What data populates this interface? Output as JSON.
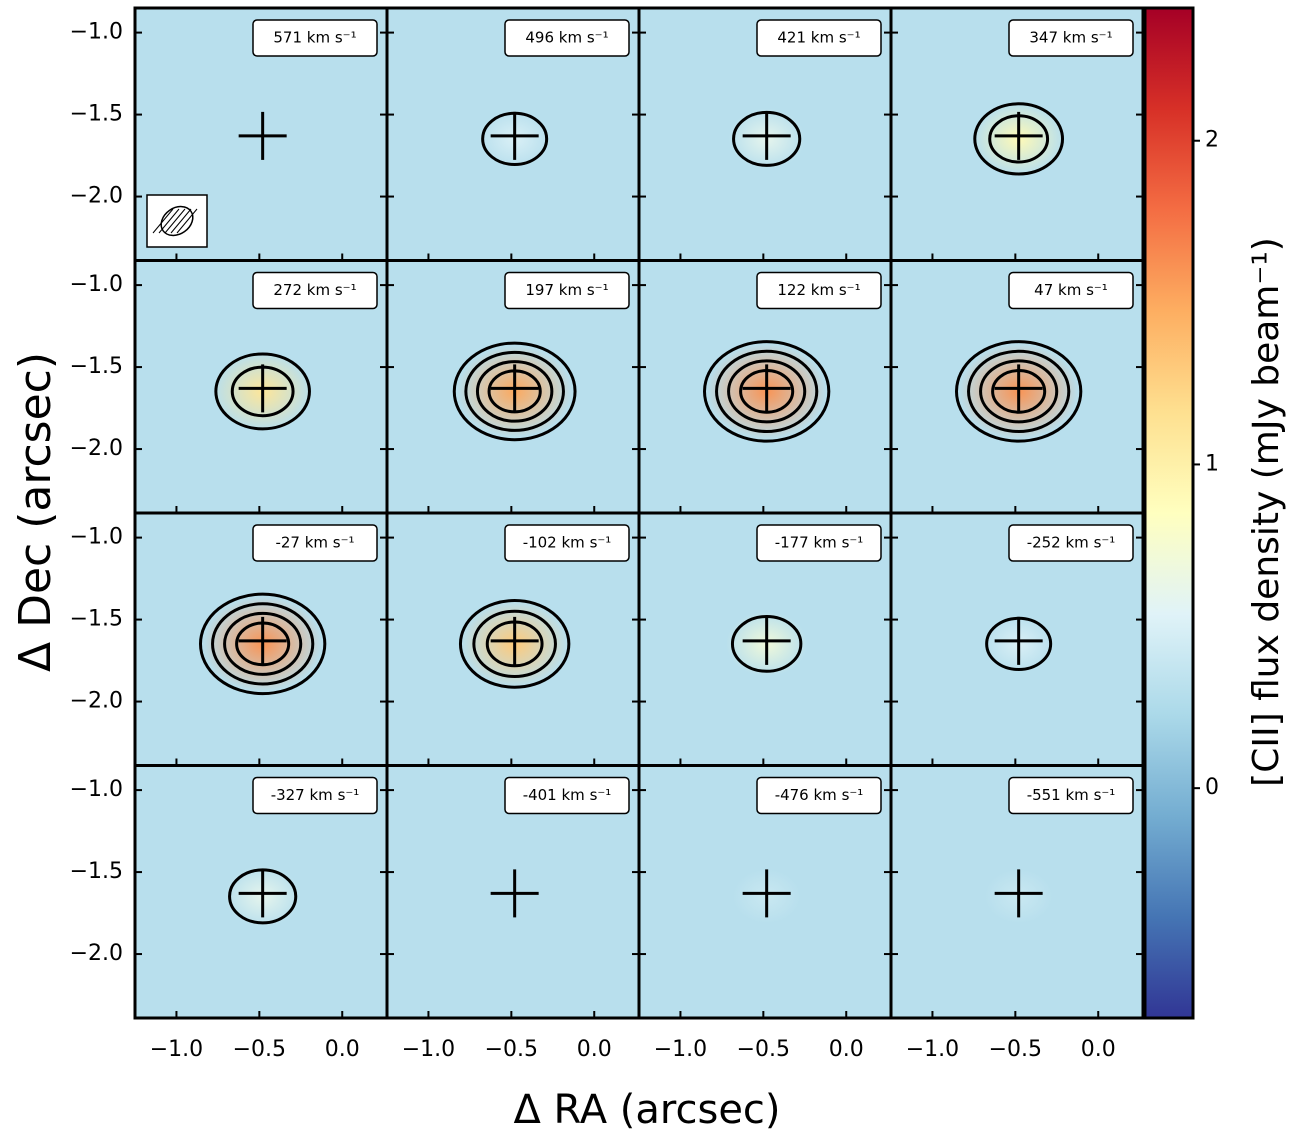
{
  "chart_data": {
    "type": "channel-map",
    "xlabel": "Δ RA (arcsec)",
    "ylabel": "Δ Dec (arcsec)",
    "colorbar_label": "[CII] flux density (mJy beam⁻¹)",
    "xlim": [
      -1.25,
      0.27
    ],
    "ylim": [
      -2.39,
      -0.85
    ],
    "xticks": [
      {
        "value": -1.0,
        "label": "−1.0"
      },
      {
        "value": -0.5,
        "label": "−0.5"
      },
      {
        "value": 0,
        "label": "0.0"
      }
    ],
    "yticks": [
      {
        "value": -1.0,
        "label": "−1.0"
      },
      {
        "value": -1.5,
        "label": "−1.5"
      },
      {
        "value": -2.0,
        "label": "−2.0"
      }
    ],
    "clim": [
      -0.71,
      2.41
    ],
    "cticks": [
      0,
      1,
      2
    ],
    "colormap": [
      "#313695",
      "#4575b4",
      "#74add1",
      "#abd9e9",
      "#e0f3f8",
      "#ffffbf",
      "#fee090",
      "#fdae61",
      "#f46d43",
      "#d73027",
      "#a50026"
    ],
    "marker": {
      "x": -0.48,
      "y": -1.63
    },
    "panels": [
      {
        "label": "571 km s⁻¹",
        "peak": 0.3
      },
      {
        "label": "496 km s⁻¹",
        "peak": 0.5
      },
      {
        "label": "421 km s⁻¹",
        "peak": 0.6
      },
      {
        "label": "347 km s⁻¹",
        "peak": 0.9
      },
      {
        "label": "272 km s⁻¹",
        "peak": 1.1
      },
      {
        "label": "197 km s⁻¹",
        "peak": 1.5
      },
      {
        "label": "122 km s⁻¹",
        "peak": 1.6
      },
      {
        "label": "47 km s⁻¹",
        "peak": 1.6
      },
      {
        "label": "-27 km s⁻¹",
        "peak": 1.6
      },
      {
        "label": "-102 km s⁻¹",
        "peak": 1.3
      },
      {
        "label": "-177 km s⁻¹",
        "peak": 0.7
      },
      {
        "label": "-252 km s⁻¹",
        "peak": 0.5
      },
      {
        "label": "-327 km s⁻¹",
        "peak": 0.6
      },
      {
        "label": "-401 km s⁻¹",
        "peak": 0.3
      },
      {
        "label": "-476 km s⁻¹",
        "peak": 0.4
      },
      {
        "label": "-551 km s⁻¹",
        "peak": 0.4
      }
    ]
  }
}
